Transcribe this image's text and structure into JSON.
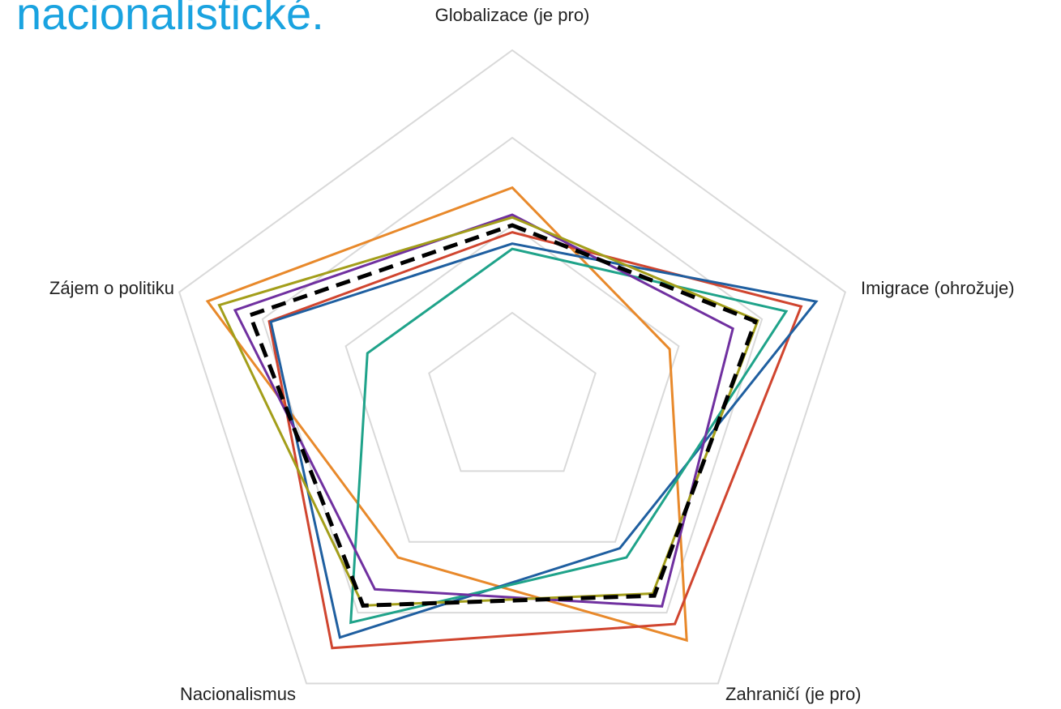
{
  "chart_data": {
    "type": "radar",
    "title": "nacionalistické.",
    "categories": [
      "Globalizace (je pro)",
      "Imigrace (ohrožuje)",
      "Zahraničí (je pro)",
      "Nacionalismus",
      "Zájem o politiku"
    ],
    "rlim": [
      0,
      4
    ],
    "rticks": [
      1,
      2,
      3,
      4
    ],
    "grid": true,
    "series": [
      {
        "color": "#e8892b",
        "values": [
          2.43,
          1.89,
          3.39,
          2.22,
          3.66
        ]
      },
      {
        "color": "#d0452f",
        "values": [
          1.92,
          3.47,
          3.16,
          3.5,
          2.92
        ]
      },
      {
        "color": "#1f5fa0",
        "values": [
          1.79,
          3.65,
          2.09,
          3.35,
          2.9
        ]
      },
      {
        "color": "#1fa38a",
        "values": [
          1.73,
          3.29,
          2.22,
          3.14,
          1.74
        ]
      },
      {
        "color": "#7030a0",
        "values": [
          2.12,
          2.65,
          2.91,
          2.67,
          3.33
        ]
      },
      {
        "color": "#a39e1a",
        "values": [
          2.09,
          2.95,
          2.73,
          2.9,
          3.52
        ]
      },
      {
        "color": "#000000",
        "dashed": true,
        "values": [
          2.0,
          2.92,
          2.76,
          2.9,
          3.15
        ]
      }
    ]
  }
}
